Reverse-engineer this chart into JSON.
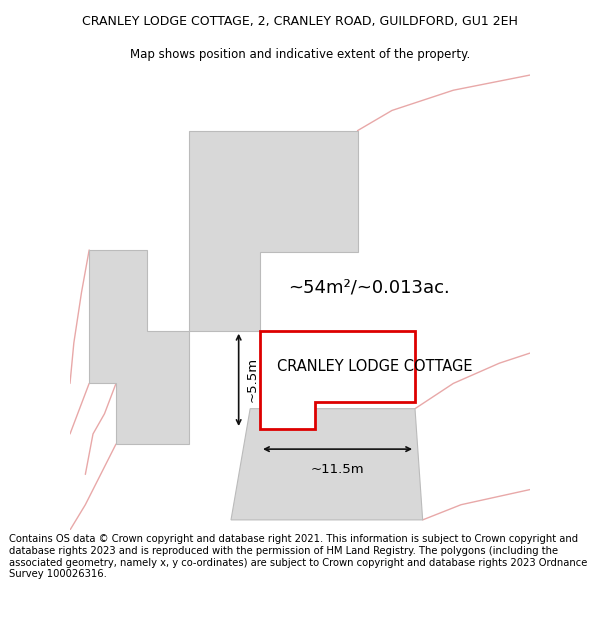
{
  "title_line1": "CRANLEY LODGE COTTAGE, 2, CRANLEY ROAD, GUILDFORD, GU1 2EH",
  "title_line2": "Map shows position and indicative extent of the property.",
  "footer_text": "Contains OS data © Crown copyright and database right 2021. This information is subject to Crown copyright and database rights 2023 and is reproduced with the permission of HM Land Registry. The polygons (including the associated geometry, namely x, y co-ordinates) are subject to Crown copyright and database rights 2023 Ordnance Survey 100026316.",
  "property_label": "CRANLEY LODGE COTTAGE",
  "area_label": "~54m²/~0.013ac.",
  "dim_width_label": "~11.5m",
  "dim_height_label": "~5.5m",
  "bg_color": "#ffffff",
  "map_bg_color": "#f0f0f0",
  "property_fill": "#ffffff",
  "property_edge": "#dd0000",
  "neighbor_fill": "#d8d8d8",
  "neighbor_edge": "#cccccc",
  "road_color": "#e8a8a8",
  "dim_color": "#111111",
  "title_fontsize": 9,
  "subtitle_fontsize": 8.5,
  "footer_fontsize": 7.2,
  "label_fontsize": 10.5,
  "area_fontsize": 13
}
